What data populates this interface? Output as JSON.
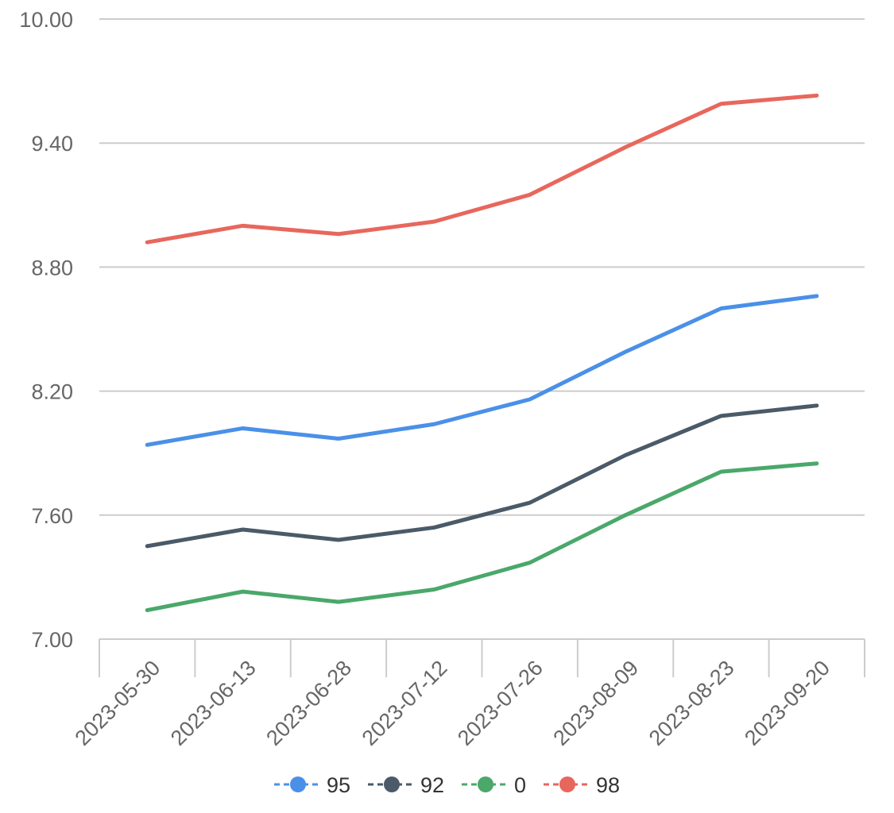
{
  "chart_data": {
    "type": "line",
    "title": "",
    "xlabel": "",
    "ylabel": "",
    "categories": [
      "2023-05-30",
      "2023-06-13",
      "2023-06-28",
      "2023-07-12",
      "2023-07-26",
      "2023-08-09",
      "2023-08-23",
      "2023-09-20"
    ],
    "ylim": [
      7.0,
      10.0
    ],
    "yticks": [
      "7.00",
      "7.60",
      "8.20",
      "8.80",
      "9.40",
      "10.00"
    ],
    "grid": true,
    "legend_position": "bottom",
    "series": [
      {
        "name": "95",
        "color": "#4a90e8",
        "values": [
          7.94,
          8.02,
          7.97,
          8.04,
          8.16,
          8.39,
          8.6,
          8.66
        ]
      },
      {
        "name": "92",
        "color": "#4a5a68",
        "values": [
          7.45,
          7.53,
          7.48,
          7.54,
          7.66,
          7.89,
          8.08,
          8.13
        ]
      },
      {
        "name": "0",
        "color": "#4aa86a",
        "values": [
          7.14,
          7.23,
          7.18,
          7.24,
          7.37,
          7.6,
          7.81,
          7.85
        ]
      },
      {
        "name": "98",
        "color": "#e8675c",
        "values": [
          8.92,
          9.0,
          8.96,
          9.02,
          9.15,
          9.38,
          9.59,
          9.63
        ]
      }
    ]
  }
}
